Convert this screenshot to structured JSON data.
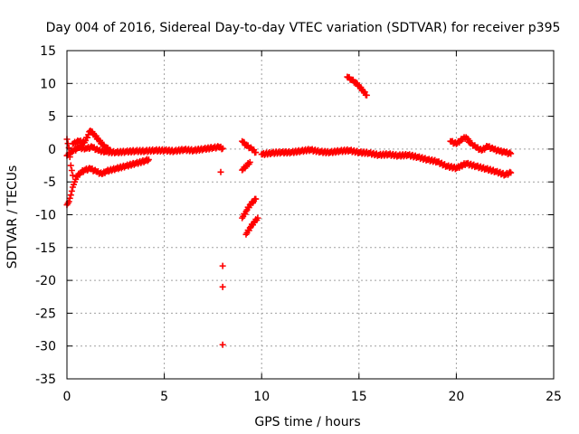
{
  "chart_data": {
    "type": "scatter",
    "title": "Day 004 of 2016, Sidereal Day-to-day VTEC variation (SDTVAR) for receiver p395",
    "xlabel": "GPS time / hours",
    "ylabel": "SDTVAR / TECUs",
    "xlim": [
      0,
      25
    ],
    "ylim": [
      -35,
      15
    ],
    "xticks": [
      "0",
      "5",
      "10",
      "15",
      "20",
      "25"
    ],
    "yticks": [
      "15",
      "10",
      "5",
      "0",
      "-5",
      "-10",
      "-15",
      "-20",
      "-25",
      "-30",
      "-35"
    ],
    "grid": true,
    "marker": "+",
    "color": "#ff0000",
    "series": [
      {
        "name": "main-band",
        "points": [
          [
            0.0,
            -1.0
          ],
          [
            0.3,
            -0.3
          ],
          [
            0.6,
            0.2
          ],
          [
            1.0,
            0.1
          ],
          [
            1.3,
            0.3
          ],
          [
            1.6,
            -0.2
          ],
          [
            2.0,
            -0.4
          ],
          [
            2.5,
            -0.5
          ],
          [
            3.0,
            -0.4
          ],
          [
            3.5,
            -0.3
          ],
          [
            4.0,
            -0.3
          ],
          [
            4.5,
            -0.2
          ],
          [
            5.0,
            -0.2
          ],
          [
            5.5,
            -0.3
          ],
          [
            6.0,
            -0.1
          ],
          [
            6.5,
            -0.2
          ],
          [
            7.0,
            0.0
          ],
          [
            7.5,
            0.2
          ],
          [
            7.8,
            0.3
          ],
          [
            8.0,
            0.1
          ],
          [
            10.0,
            -0.8
          ],
          [
            10.5,
            -0.6
          ],
          [
            11.0,
            -0.5
          ],
          [
            11.5,
            -0.5
          ],
          [
            12.0,
            -0.3
          ],
          [
            12.5,
            -0.1
          ],
          [
            13.0,
            -0.4
          ],
          [
            13.5,
            -0.5
          ],
          [
            14.0,
            -0.3
          ],
          [
            14.5,
            -0.2
          ],
          [
            15.0,
            -0.5
          ],
          [
            15.5,
            -0.6
          ],
          [
            16.0,
            -0.9
          ],
          [
            16.5,
            -0.8
          ],
          [
            17.0,
            -1.0
          ],
          [
            17.5,
            -0.9
          ],
          [
            18.0,
            -1.2
          ],
          [
            18.5,
            -1.6
          ],
          [
            19.0,
            -1.9
          ],
          [
            19.5,
            -2.6
          ],
          [
            20.0,
            -2.9
          ],
          [
            20.5,
            -2.2
          ],
          [
            21.0,
            -2.6
          ],
          [
            21.5,
            -3.0
          ],
          [
            22.0,
            -3.4
          ],
          [
            22.5,
            -3.9
          ],
          [
            22.8,
            -3.6
          ]
        ]
      },
      {
        "name": "early-high-arc",
        "points": [
          [
            0.3,
            0.8
          ],
          [
            0.6,
            1.2
          ],
          [
            0.9,
            1.0
          ],
          [
            1.2,
            2.8
          ],
          [
            1.4,
            2.2
          ],
          [
            1.6,
            1.5
          ],
          [
            1.8,
            0.8
          ],
          [
            2.0,
            0.2
          ],
          [
            2.2,
            -0.1
          ]
        ]
      },
      {
        "name": "early-low-arc",
        "points": [
          [
            0.0,
            -8.5
          ],
          [
            0.1,
            -8.0
          ],
          [
            0.2,
            -7.0
          ],
          [
            0.3,
            -5.8
          ],
          [
            0.4,
            -5.0
          ],
          [
            0.5,
            -4.2
          ],
          [
            0.7,
            -3.6
          ],
          [
            0.9,
            -3.2
          ],
          [
            1.2,
            -3.0
          ],
          [
            1.5,
            -3.4
          ],
          [
            1.8,
            -3.8
          ],
          [
            2.0,
            -3.4
          ],
          [
            2.5,
            -3.0
          ],
          [
            3.0,
            -2.6
          ],
          [
            3.5,
            -2.2
          ],
          [
            4.0,
            -1.8
          ],
          [
            4.2,
            -1.6
          ]
        ]
      },
      {
        "name": "initial-drop",
        "points": [
          [
            0.0,
            1.5
          ],
          [
            0.1,
            0.2
          ],
          [
            0.15,
            -1.2
          ],
          [
            0.2,
            -2.5
          ],
          [
            0.3,
            -4.0
          ]
        ]
      },
      {
        "name": "late-upper",
        "points": [
          [
            19.7,
            1.2
          ],
          [
            20.0,
            0.8
          ],
          [
            20.3,
            1.5
          ],
          [
            20.5,
            1.8
          ],
          [
            20.7,
            1.0
          ],
          [
            21.0,
            0.3
          ],
          [
            21.3,
            -0.2
          ],
          [
            21.6,
            0.4
          ],
          [
            21.9,
            0.0
          ],
          [
            22.2,
            -0.3
          ],
          [
            22.5,
            -0.5
          ],
          [
            22.8,
            -0.7
          ]
        ]
      },
      {
        "name": "gap-arcs",
        "points": [
          [
            7.9,
            -3.5
          ],
          [
            8.0,
            -17.8
          ],
          [
            8.0,
            -21.0
          ],
          [
            8.0,
            -29.8
          ],
          [
            9.0,
            1.2
          ],
          [
            9.2,
            0.6
          ],
          [
            9.5,
            0.0
          ],
          [
            9.7,
            -0.5
          ],
          [
            9.0,
            -3.2
          ],
          [
            9.2,
            -2.6
          ],
          [
            9.4,
            -2.0
          ],
          [
            9.0,
            -10.5
          ],
          [
            9.2,
            -9.5
          ],
          [
            9.4,
            -8.5
          ],
          [
            9.7,
            -7.6
          ],
          [
            9.2,
            -13.0
          ],
          [
            9.4,
            -12.0
          ],
          [
            9.6,
            -11.2
          ],
          [
            9.8,
            -10.5
          ]
        ]
      },
      {
        "name": "high-arc",
        "points": [
          [
            14.4,
            11.0
          ],
          [
            14.6,
            10.6
          ],
          [
            14.8,
            10.2
          ],
          [
            15.0,
            9.6
          ],
          [
            15.2,
            8.9
          ],
          [
            15.4,
            8.2
          ]
        ]
      }
    ]
  }
}
